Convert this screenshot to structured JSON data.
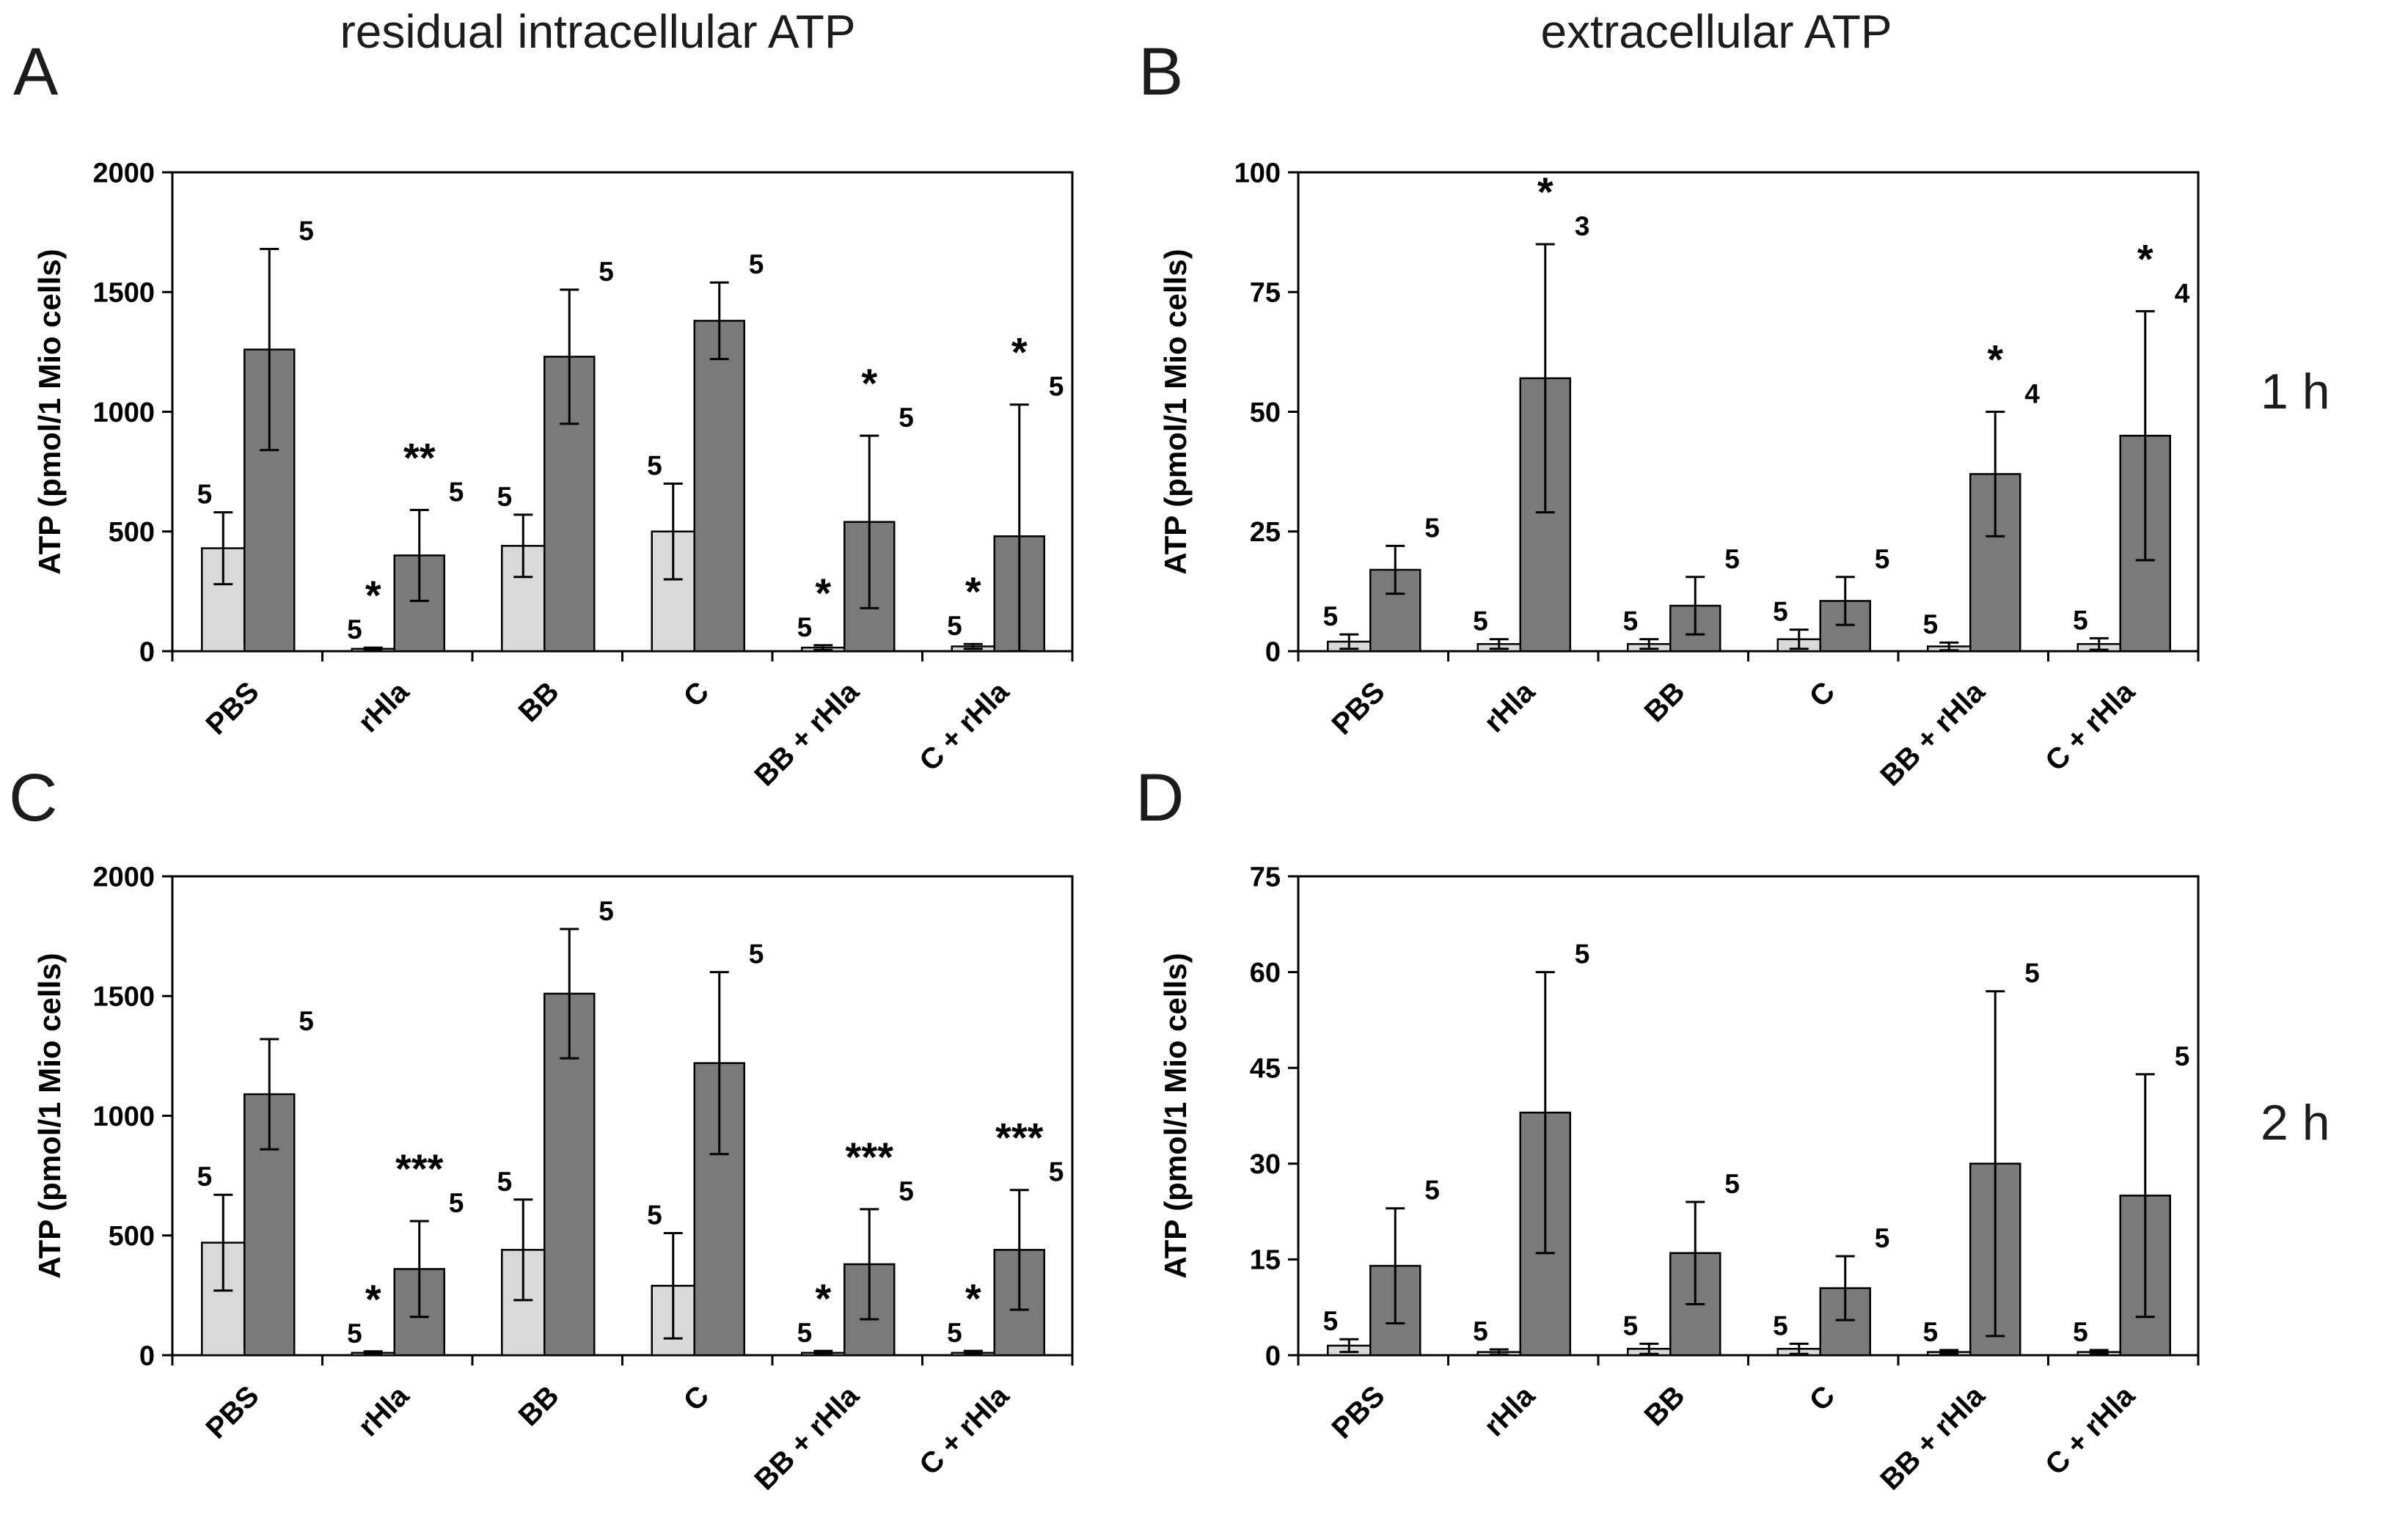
{
  "figure": {
    "column_titles": [
      "residual intracellular ATP",
      "extracellular ATP"
    ],
    "row_labels": [
      "1 h",
      "2 h"
    ],
    "panel_letters": [
      "A",
      "B",
      "C",
      "D"
    ]
  },
  "colors": {
    "light_bar": "#d9d9d9",
    "dark_bar": "#7a7a7a",
    "axis": "#000000",
    "background": "#ffffff"
  },
  "chart_data": [
    {
      "panel": "A",
      "type": "bar",
      "title": "residual intracellular ATP",
      "time": "1 h",
      "ylabel": "ATP (pmol/1 Mio cells)",
      "ylim": [
        0,
        2000
      ],
      "yticks": [
        0,
        500,
        1000,
        1500,
        2000
      ],
      "categories": [
        "PBS",
        "rHla",
        "BB",
        "C",
        "BB + rHla",
        "C + rHla"
      ],
      "series": [
        {
          "name": "light-gray",
          "values": [
            430,
            10,
            440,
            500,
            15,
            20
          ],
          "errors": [
            150,
            5,
            130,
            200,
            10,
            10
          ],
          "n": [
            "5",
            "5",
            "5",
            "5",
            "5",
            "5"
          ],
          "sig": [
            "",
            "*",
            "",
            "",
            "*",
            "*"
          ]
        },
        {
          "name": "dark-gray",
          "values": [
            1260,
            400,
            1230,
            1380,
            540,
            480
          ],
          "errors": [
            420,
            190,
            280,
            160,
            360,
            550
          ],
          "n": [
            "5",
            "5",
            "5",
            "5",
            "5",
            "5"
          ],
          "sig": [
            "",
            "**",
            "",
            "",
            "*",
            "*"
          ]
        }
      ]
    },
    {
      "panel": "B",
      "type": "bar",
      "title": "extracellular ATP",
      "time": "1 h",
      "ylabel": "ATP (pmol/1 Mio cells)",
      "ylim": [
        0,
        100
      ],
      "yticks": [
        0,
        25,
        50,
        75,
        100
      ],
      "categories": [
        "PBS",
        "rHla",
        "BB",
        "C",
        "BB + rHla",
        "C + rHla"
      ],
      "series": [
        {
          "name": "light-gray",
          "values": [
            2,
            1.5,
            1.5,
            2.5,
            1,
            1.5
          ],
          "errors": [
            1.5,
            1,
            1,
            2,
            0.8,
            1.2
          ],
          "n": [
            "5",
            "5",
            "5",
            "5",
            "5",
            "5"
          ],
          "sig": [
            "",
            "",
            "",
            "",
            "",
            ""
          ]
        },
        {
          "name": "dark-gray",
          "values": [
            17,
            57,
            9.5,
            10.5,
            37,
            45
          ],
          "errors": [
            5,
            28,
            6,
            5,
            13,
            26
          ],
          "n": [
            "5",
            "3",
            "5",
            "5",
            "4",
            "4"
          ],
          "sig": [
            "",
            "*",
            "",
            "",
            "*",
            "*"
          ]
        }
      ]
    },
    {
      "panel": "C",
      "type": "bar",
      "title": "residual intracellular ATP",
      "time": "2 h",
      "ylabel": "ATP (pmol/1 Mio cells)",
      "ylim": [
        0,
        2000
      ],
      "yticks": [
        0,
        500,
        1000,
        1500,
        2000
      ],
      "categories": [
        "PBS",
        "rHla",
        "BB",
        "C",
        "BB + rHla",
        "C + rHla"
      ],
      "series": [
        {
          "name": "light-gray",
          "values": [
            470,
            10,
            440,
            290,
            10,
            10
          ],
          "errors": [
            200,
            6,
            210,
            220,
            8,
            8
          ],
          "n": [
            "5",
            "5",
            "5",
            "5",
            "5",
            "5"
          ],
          "sig": [
            "",
            "*",
            "",
            "",
            "*",
            "*"
          ]
        },
        {
          "name": "dark-gray",
          "values": [
            1090,
            360,
            1510,
            1220,
            380,
            440
          ],
          "errors": [
            230,
            200,
            270,
            380,
            230,
            250
          ],
          "n": [
            "5",
            "5",
            "5",
            "5",
            "5",
            "5"
          ],
          "sig": [
            "",
            "***",
            "",
            "",
            "***",
            "***"
          ]
        }
      ]
    },
    {
      "panel": "D",
      "type": "bar",
      "title": "extracellular ATP",
      "time": "2 h",
      "ylabel": "ATP (pmol/1 Mio cells)",
      "ylim": [
        0,
        75
      ],
      "yticks": [
        0,
        15,
        30,
        45,
        60,
        75
      ],
      "categories": [
        "PBS",
        "rHla",
        "BB",
        "C",
        "BB + rHla",
        "C + rHla"
      ],
      "series": [
        {
          "name": "light-gray",
          "values": [
            1.5,
            0.5,
            1,
            1,
            0.5,
            0.5
          ],
          "errors": [
            1,
            0.4,
            0.8,
            0.8,
            0.3,
            0.3
          ],
          "n": [
            "5",
            "5",
            "5",
            "5",
            "5",
            "5"
          ],
          "sig": [
            "",
            "",
            "",
            "",
            "",
            ""
          ]
        },
        {
          "name": "dark-gray",
          "values": [
            14,
            38,
            16,
            10.5,
            30,
            25
          ],
          "errors": [
            9,
            22,
            8,
            5,
            27,
            19
          ],
          "n": [
            "5",
            "5",
            "5",
            "5",
            "5",
            "5"
          ],
          "sig": [
            "",
            "",
            "",
            "",
            "",
            ""
          ]
        }
      ]
    }
  ]
}
